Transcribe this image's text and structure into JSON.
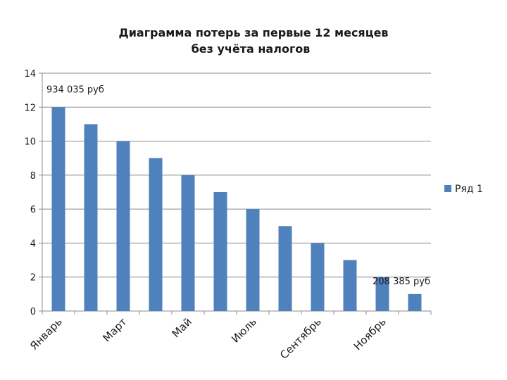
{
  "chart_data": {
    "type": "bar",
    "title_line1": "Диаграмма потерь за первые 12 месяцев",
    "title_line2": "без учёта налогов",
    "categories": [
      "Январь",
      "",
      "Март",
      "",
      "Май",
      "",
      "Июль",
      "",
      "Сентябрь",
      "",
      "Ноябрь",
      ""
    ],
    "series": [
      {
        "name": "Ряд 1",
        "values": [
          12,
          11,
          10,
          9,
          8,
          7,
          6,
          5,
          4,
          3,
          2,
          1
        ],
        "color": "#4f81bd"
      }
    ],
    "y_ticks": [
      "0",
      "2",
      "4",
      "6",
      "8",
      "10",
      "12",
      "14"
    ],
    "ylim": [
      0,
      14
    ],
    "grid": true,
    "legend_position": "right",
    "annotations": [
      {
        "text": "934 035 руб",
        "category_index": 0
      },
      {
        "text": "208 385 руб",
        "category_index": 11
      }
    ]
  }
}
